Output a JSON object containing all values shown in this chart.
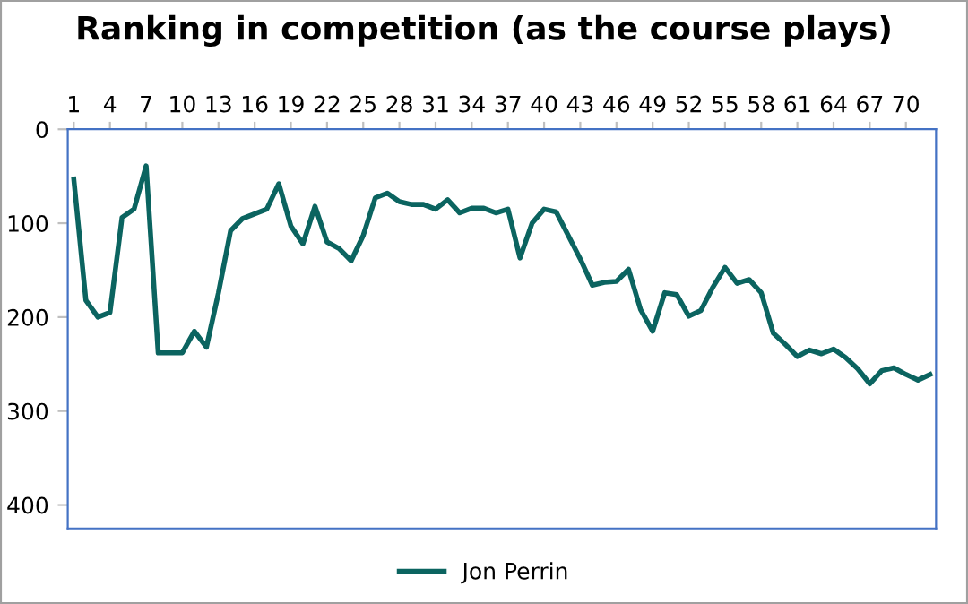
{
  "chart_data": {
    "type": "line",
    "title": "Ranking in competition (as the course plays)",
    "x": [
      1,
      2,
      3,
      4,
      5,
      6,
      7,
      8,
      9,
      10,
      11,
      12,
      13,
      14,
      15,
      16,
      17,
      18,
      19,
      20,
      21,
      22,
      23,
      24,
      25,
      26,
      27,
      28,
      29,
      30,
      31,
      32,
      33,
      34,
      35,
      36,
      37,
      38,
      39,
      40,
      41,
      42,
      43,
      44,
      45,
      46,
      47,
      48,
      49,
      50,
      51,
      52,
      53,
      54,
      55,
      56,
      57,
      58,
      59,
      60,
      61,
      62,
      63,
      64,
      65,
      66,
      67,
      68,
      69,
      70,
      71,
      72
    ],
    "series": [
      {
        "name": "Jon Perrin",
        "color": "#0b6460",
        "values": [
          53,
          182,
          200,
          195,
          94,
          85,
          39,
          238,
          238,
          238,
          215,
          232,
          174,
          108,
          95,
          90,
          85,
          58,
          103,
          122,
          82,
          120,
          127,
          140,
          113,
          73,
          68,
          77,
          80,
          80,
          85,
          75,
          89,
          84,
          84,
          89,
          85,
          137,
          100,
          85,
          88,
          113,
          138,
          166,
          163,
          162,
          149,
          192,
          215,
          174,
          176,
          199,
          193,
          168,
          147,
          164,
          160,
          174,
          217,
          229,
          242,
          235,
          239,
          234,
          243,
          255,
          271,
          257,
          254,
          261,
          267,
          261
        ]
      }
    ],
    "xlim": [
      0.5,
      72.5
    ],
    "xticks": [
      1,
      4,
      7,
      10,
      13,
      16,
      19,
      22,
      25,
      28,
      31,
      34,
      37,
      40,
      43,
      46,
      49,
      52,
      55,
      58,
      61,
      64,
      67,
      70
    ],
    "ylim": [
      425,
      0
    ],
    "yticks": [
      0,
      100,
      200,
      300,
      400
    ],
    "grid": false,
    "legend": "bottom",
    "marker": "none",
    "line_style": "solid"
  }
}
